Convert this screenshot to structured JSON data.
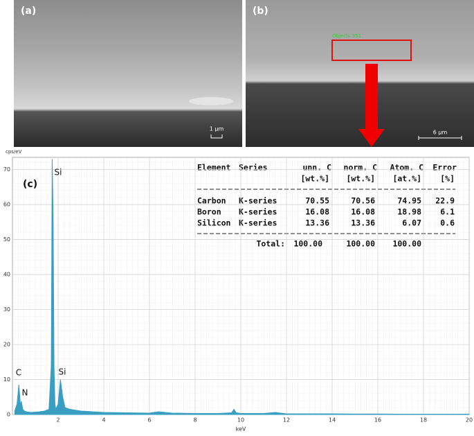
{
  "panels": {
    "a": {
      "label": "(a)",
      "scale": "1 µm"
    },
    "b": {
      "label": "(b)",
      "scale": "6 µm",
      "object": "Objects 351"
    }
  },
  "chart_data": {
    "type": "area",
    "panel_label": "(c)",
    "y_label": "cps/eV",
    "x_label": "keV",
    "color": "#3a9ec2",
    "x": [
      0.1,
      0.2,
      0.28,
      0.35,
      0.39,
      0.45,
      0.52,
      0.6,
      0.7,
      0.8,
      1.0,
      1.2,
      1.4,
      1.6,
      1.7,
      1.74,
      1.78,
      1.82,
      1.86,
      1.9,
      2.0,
      2.1,
      2.2,
      2.3,
      2.5,
      3.0,
      3.5,
      4,
      5,
      6,
      6.4,
      7,
      8,
      9,
      9.6,
      9.7,
      9.8,
      10,
      11,
      11.5,
      12,
      13,
      14,
      15,
      16,
      17,
      18,
      19,
      20
    ],
    "values": [
      1,
      3,
      8.5,
      2.5,
      3.8,
      1.5,
      1,
      0.8,
      0.7,
      0.6,
      0.7,
      0.8,
      1,
      1.5,
      14,
      73,
      57,
      14,
      3,
      1.5,
      3,
      10,
      5,
      2,
      1.5,
      1,
      0.8,
      0.6,
      0.5,
      0.4,
      0.8,
      0.4,
      0.3,
      0.3,
      0.5,
      1.5,
      0.5,
      0.3,
      0.3,
      0.6,
      0.2,
      0.2,
      0.2,
      0.15,
      0.15,
      0.1,
      0.1,
      0.1,
      0.1
    ],
    "xlim": [
      0,
      20
    ],
    "xticks": [
      2,
      4,
      6,
      8,
      10,
      12,
      14,
      16,
      18,
      20
    ],
    "ylim": [
      0,
      73.5
    ],
    "yticks": [
      0,
      10,
      20,
      30,
      40,
      50,
      60,
      70
    ],
    "grid": true,
    "annotations": [
      "C",
      "N",
      "Si",
      "Si"
    ],
    "table": {
      "columns": [
        {
          "name": "Element"
        },
        {
          "name": "Series"
        },
        {
          "name": "unn. C",
          "unit": "[wt.%]"
        },
        {
          "name": "norm. C",
          "unit": "[wt.%]"
        },
        {
          "name": "Atom. C",
          "unit": "[at.%]"
        },
        {
          "name": "Error",
          "unit": "[%]"
        }
      ],
      "rows": [
        [
          "Carbon",
          "K-series",
          "70.55",
          "70.56",
          "74.95",
          "22.9"
        ],
        [
          "Boron",
          "K-series",
          "16.08",
          "16.08",
          "18.98",
          "6.1"
        ],
        [
          "Silicon",
          "K-series",
          "13.36",
          "13.36",
          "6.07",
          "0.6"
        ]
      ],
      "total": {
        "label": "Total:",
        "values": [
          "100.00",
          "100.00",
          "100.00"
        ]
      }
    }
  }
}
